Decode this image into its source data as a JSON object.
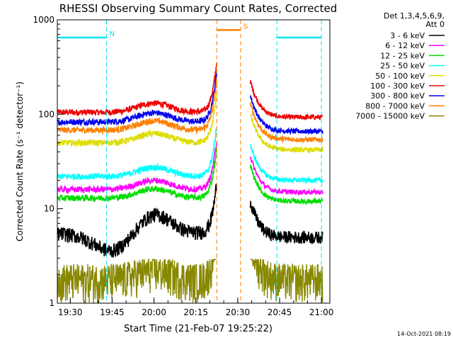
{
  "chart_data": {
    "type": "line",
    "title": "RHESSI Observing Summary Count Rates, Corrected",
    "xlabel": "Start Time (21-Feb-07 19:25:22)",
    "ylabel": "Corrected Count Rate (s⁻¹ detector⁻¹)",
    "yscale": "log",
    "ylim": [
      1,
      1000
    ],
    "xlim_minutes": [
      19.4,
      21.07
    ],
    "x_ticks": [
      "19:30",
      "19:45",
      "20:00",
      "20:15",
      "20:30",
      "20:45",
      "21:00"
    ],
    "y_ticks": [
      "1",
      "10",
      "100",
      "1000"
    ],
    "legend": {
      "placement": "right",
      "header": [
        "Det 1,3,4,5,6,9,",
        "Att 0"
      ],
      "entries": [
        {
          "label": "3 - 6 keV",
          "color": "#000000"
        },
        {
          "label": "6 - 12 keV",
          "color": "#ff00ff"
        },
        {
          "label": "12 - 25 keV",
          "color": "#00dd00"
        },
        {
          "label": "25 - 50 keV",
          "color": "#00ffff"
        },
        {
          "label": "50 - 100 keV",
          "color": "#dddd00"
        },
        {
          "label": "100 - 300 keV",
          "color": "#ee0000"
        },
        {
          "label": "300 - 800 keV",
          "color": "#0000ee"
        },
        {
          "label": "800 - 7000 keV",
          "color": "#ff8000"
        },
        {
          "label": "7000 - 15000 keV",
          "color": "#888800"
        }
      ]
    },
    "series": [
      {
        "name": "100 - 300 keV",
        "color": "#ee0000",
        "level_pre": 105,
        "level_post": 93
      },
      {
        "name": "300 - 800 keV",
        "color": "#0000ee",
        "level_pre": 83,
        "level_post": 66
      },
      {
        "name": "800 - 7000 keV",
        "color": "#ff8000",
        "level_pre": 68,
        "level_post": 54
      },
      {
        "name": "50 - 100 keV",
        "color": "#dddd00",
        "level_pre": 50,
        "level_post": 42
      },
      {
        "name": "25 - 50 keV",
        "color": "#00ffff",
        "level_pre": 22,
        "level_post": 20
      },
      {
        "name": "6 - 12 keV",
        "color": "#ff00ff",
        "level_pre": 16,
        "level_post": 15
      },
      {
        "name": "12 - 25 keV",
        "color": "#00dd00",
        "level_pre": 13,
        "level_post": 12
      },
      {
        "name": "3 - 6 keV",
        "color": "#000000",
        "level_pre": 5.5,
        "level_post": 5
      },
      {
        "name": "7000 - 15000 keV",
        "color": "#888800",
        "level_pre": 1.8,
        "level_post": 1.8
      }
    ],
    "intervals": [
      {
        "label": "N",
        "color": "#00e5ee",
        "start": "19:25:22",
        "end": "19:43:00",
        "value": 650
      },
      {
        "label": "",
        "color": "#00e5ee",
        "start": "20:44:00",
        "end": "21:00:00",
        "value": 650
      },
      {
        "label": "S",
        "color": "#ff8000",
        "start": "20:22:30",
        "end": "20:31:00",
        "value": 780
      }
    ],
    "gaps": [
      {
        "start": "20:22:30",
        "end": "20:34:30"
      }
    ]
  },
  "footer_timestamp": "14-Oct-2021 08:19"
}
